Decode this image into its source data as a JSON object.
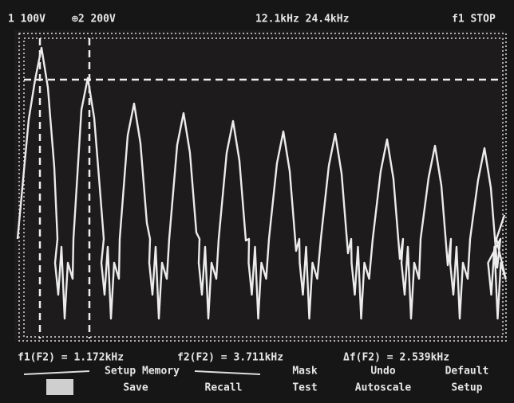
{
  "status": {
    "channel1": "1 100V",
    "channel2": "⊕2 200V",
    "timebase": "12.1kHz 24.4kHz",
    "run_state": "f1 STOP"
  },
  "readouts": {
    "f1": "f1(F2) = 1.172kHz",
    "f2": "f2(F2) = 3.711kHz",
    "delta": "Δf(F2) = 2.539kHz"
  },
  "softkeys": {
    "group": "Setup Memory",
    "save": "Save",
    "recall": "Recall",
    "mask_1": "Mask",
    "mask_2": "Test",
    "undo_1": "Undo",
    "undo_2": "Autoscale",
    "default_1": "Default",
    "default_2": "Setup"
  }
}
